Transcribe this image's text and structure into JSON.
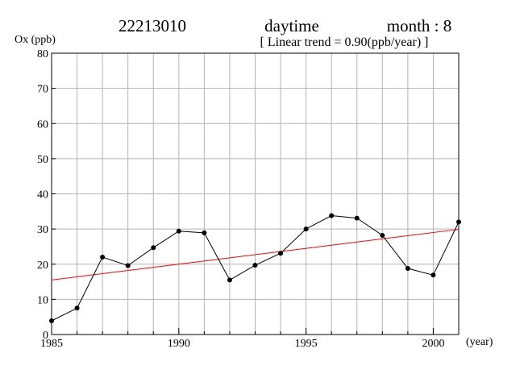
{
  "header": {
    "station": "22213010",
    "period": "daytime",
    "month_label": "month : 8",
    "trend_text": "[ Linear trend = 0.90(ppb/year) ]"
  },
  "chart_data": {
    "type": "line",
    "title": "22213010   daytime   month : 8",
    "subtitle": "[ Linear trend = 0.90(ppb/year) ]",
    "ylabel": "Ox (ppb)",
    "xlabel": "(year)",
    "xlim": [
      1985,
      2001
    ],
    "ylim": [
      0,
      80
    ],
    "x_ticks": [
      1985,
      1990,
      1995,
      2000
    ],
    "y_ticks": [
      0,
      10,
      20,
      30,
      40,
      50,
      60,
      70,
      80
    ],
    "grid": true,
    "series": [
      {
        "color": "#000000",
        "x": [
          1985,
          1986,
          1987,
          1988,
          1989,
          1990,
          1991,
          1992,
          1993,
          1994,
          1995,
          1996,
          1997,
          1998,
          1999,
          2000,
          2001
        ],
        "y": [
          3.9,
          7.5,
          22.0,
          19.6,
          24.7,
          29.4,
          28.9,
          15.5,
          19.7,
          23.1,
          30.0,
          33.8,
          33.1,
          28.2,
          18.8,
          16.9,
          32.0
        ]
      }
    ],
    "trend": {
      "color": "#ff0000",
      "slope": 0.9,
      "start": [
        1985,
        15.5
      ],
      "end": [
        2001,
        29.9
      ]
    }
  }
}
